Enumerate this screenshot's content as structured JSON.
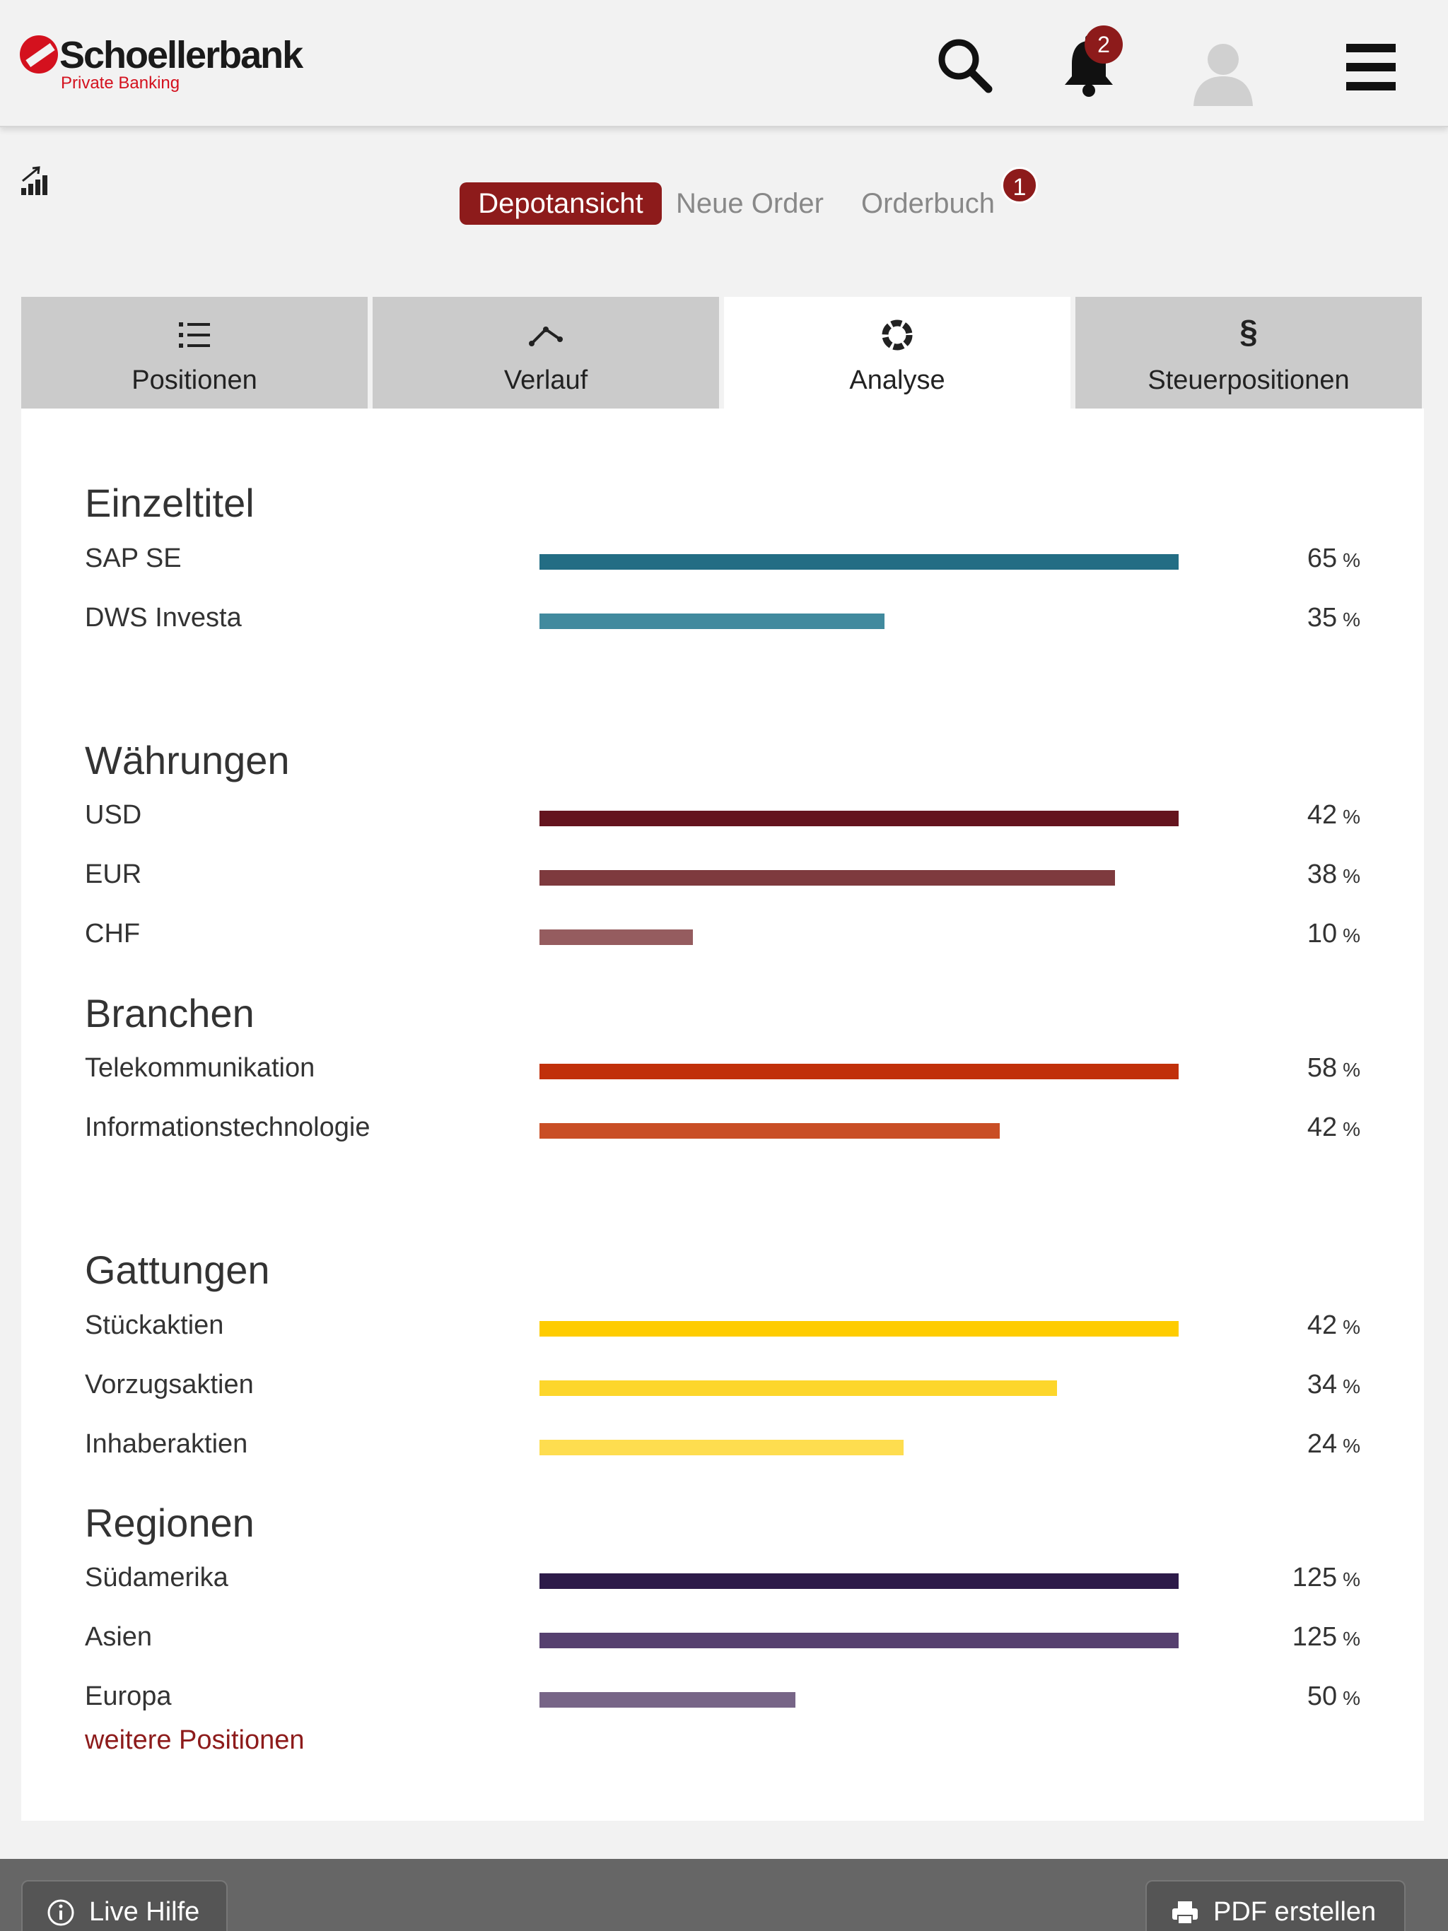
{
  "header": {
    "brand_name": "Schoellerbank",
    "brand_sub": "Private Banking",
    "notifications_count": "2"
  },
  "subnav": {
    "depot_label": "Depotansicht",
    "new_order_label": "Neue Order",
    "orderbook_label": "Orderbuch",
    "orderbook_badge": "1"
  },
  "tabs": {
    "positions": "Positionen",
    "history": "Verlauf",
    "analysis": "Analyse",
    "tax": "Steuerpositionen",
    "tax_icon": "§"
  },
  "colors": {
    "accent": "#8d1b1b",
    "einzeltitel": [
      "#236d84",
      "#418a9e"
    ],
    "waehrungen": [
      "#64141e",
      "#7e3a3e",
      "#955c5f"
    ],
    "branchen": [
      "#c1300a",
      "#c94e25"
    ],
    "gattungen": [
      "#fecc00",
      "#fdd62b",
      "#fedd4f"
    ],
    "regionen": [
      "#2d1b49",
      "#56406f",
      "#776587"
    ]
  },
  "sections": {
    "einzeltitel": {
      "title": "Einzeltitel",
      "rows": [
        {
          "label": "SAP SE",
          "value": "65",
          "fill": 1.0
        },
        {
          "label": "DWS Investa",
          "value": "35",
          "fill": 0.54
        }
      ]
    },
    "waehrungen": {
      "title": "Währungen",
      "rows": [
        {
          "label": "USD",
          "value": "42",
          "fill": 1.0
        },
        {
          "label": "EUR",
          "value": "38",
          "fill": 0.9
        },
        {
          "label": "CHF",
          "value": "10",
          "fill": 0.24
        }
      ]
    },
    "branchen": {
      "title": "Branchen",
      "rows": [
        {
          "label": "Telekommunikation",
          "value": "58",
          "fill": 1.0
        },
        {
          "label": "Informationstechnologie",
          "value": "42",
          "fill": 0.72
        }
      ]
    },
    "gattungen": {
      "title": "Gattungen",
      "rows": [
        {
          "label": "Stückaktien",
          "value": "42",
          "fill": 1.0
        },
        {
          "label": "Vorzugsaktien",
          "value": "34",
          "fill": 0.81
        },
        {
          "label": "Inhaberaktien",
          "value": "24",
          "fill": 0.57
        }
      ]
    },
    "regionen": {
      "title": "Regionen",
      "rows": [
        {
          "label": "Südamerika",
          "value": "125",
          "fill": 1.0
        },
        {
          "label": "Asien",
          "value": "125",
          "fill": 1.0
        },
        {
          "label": "Europa",
          "value": "50",
          "fill": 0.4
        }
      ]
    }
  },
  "percent_unit": "%",
  "more_link": "weitere Positionen",
  "footer": {
    "help_label": "Live Hilfe",
    "pdf_label": "PDF erstellen"
  }
}
